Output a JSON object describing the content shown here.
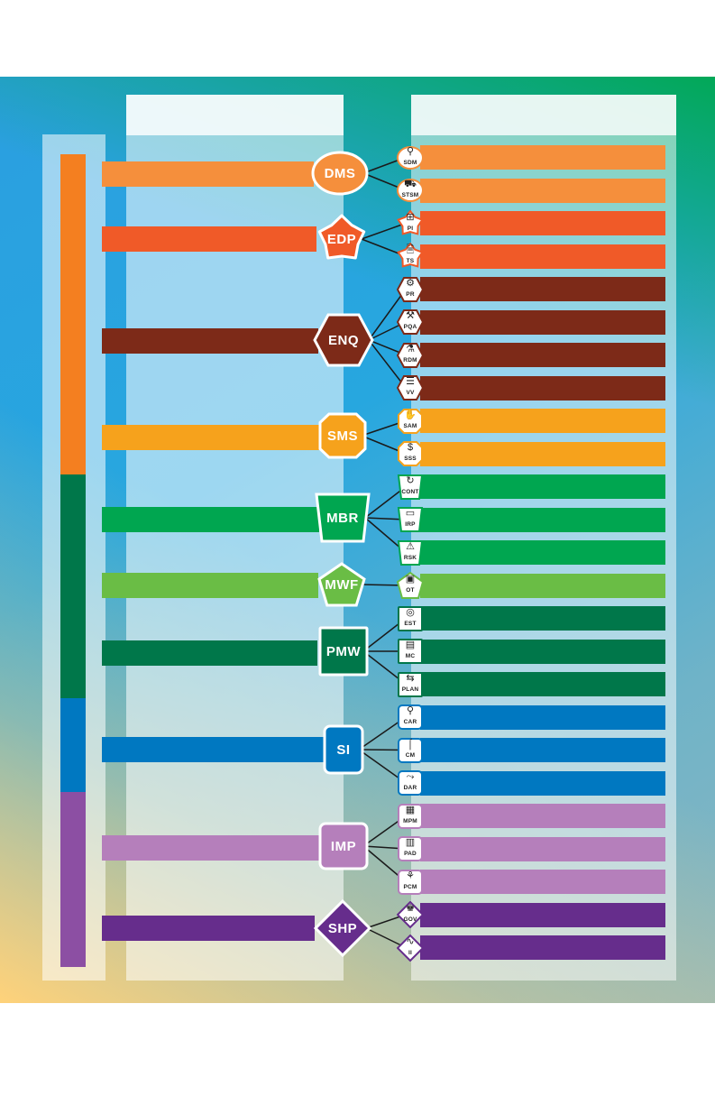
{
  "colors": {
    "dms": "#f58f3c",
    "edp": "#f05a28",
    "enq": "#7d2a18",
    "sms": "#f6a21c",
    "mbr": "#00a650",
    "mwf": "#6abd45",
    "pmw": "#00774a",
    "si": "#0078c1",
    "imp": "#b57fbb",
    "shp": "#662d8c",
    "sidebar_orange": "#f47f20",
    "sidebar_green": "#00774a",
    "sidebar_blue": "#0078c1",
    "sidebar_purple": "#8c4fa3"
  },
  "groups": [
    {
      "id": "dms",
      "label": "DMS",
      "shape": "ellipse",
      "color": "#f58f3c",
      "components": [
        {
          "code": "SDM",
          "icon": "people-search-icon",
          "glyph": "⚲"
        },
        {
          "code": "STSM",
          "icon": "truck-icon",
          "glyph": "⛟"
        }
      ]
    },
    {
      "id": "edp",
      "label": "EDP",
      "shape": "star-blob",
      "color": "#f05a28",
      "components": [
        {
          "code": "PI",
          "icon": "grid-globe-icon",
          "glyph": "⊞"
        },
        {
          "code": "TS",
          "icon": "document-check-icon",
          "glyph": "🗎"
        }
      ]
    },
    {
      "id": "enq",
      "label": "ENQ",
      "shape": "hexagon",
      "color": "#7d2a18",
      "components": [
        {
          "code": "PR",
          "icon": "gears-icon",
          "glyph": "⚙"
        },
        {
          "code": "PQA",
          "icon": "inspection-icon",
          "glyph": "⚒"
        },
        {
          "code": "RDM",
          "icon": "lab-icon",
          "glyph": "⚗"
        },
        {
          "code": "VV",
          "icon": "checklist-icon",
          "glyph": "☰"
        }
      ]
    },
    {
      "id": "sms",
      "label": "SMS",
      "shape": "octagon",
      "color": "#f6a21c",
      "components": [
        {
          "code": "SAM",
          "icon": "handshake-icon",
          "glyph": "✋"
        },
        {
          "code": "SSS",
          "icon": "money-people-icon",
          "glyph": "$"
        }
      ]
    },
    {
      "id": "mbr",
      "label": "MBR",
      "shape": "trapezoid",
      "color": "#00a650",
      "components": [
        {
          "code": "CONT",
          "icon": "refresh-icon",
          "glyph": "↻"
        },
        {
          "code": "IRP",
          "icon": "monitor-icon",
          "glyph": "▭"
        },
        {
          "code": "RSK",
          "icon": "warning-icon",
          "glyph": "⚠"
        }
      ]
    },
    {
      "id": "mwf",
      "label": "MWF",
      "shape": "pentagon",
      "color": "#6abd45",
      "components": [
        {
          "code": "OT",
          "icon": "worker-screen-icon",
          "glyph": "▣"
        }
      ]
    },
    {
      "id": "pmw",
      "label": "PMW",
      "shape": "square",
      "color": "#00774a",
      "components": [
        {
          "code": "EST",
          "icon": "target-icon",
          "glyph": "◎"
        },
        {
          "code": "MC",
          "icon": "clipboard-icon",
          "glyph": "▤"
        },
        {
          "code": "PLAN",
          "icon": "plan-icon",
          "glyph": "⇆"
        }
      ]
    },
    {
      "id": "si",
      "label": "SI",
      "shape": "rounded-rect",
      "color": "#0078c1",
      "components": [
        {
          "code": "CAR",
          "icon": "magnifier-icon",
          "glyph": "⚲"
        },
        {
          "code": "CM",
          "icon": "wrench-icon",
          "glyph": "⌠"
        },
        {
          "code": "DAR",
          "icon": "decision-icon",
          "glyph": "⤳"
        }
      ]
    },
    {
      "id": "imp",
      "label": "IMP",
      "shape": "rounded-rect",
      "color": "#b57fbb",
      "components": [
        {
          "code": "MPM",
          "icon": "report-icon",
          "glyph": "▦"
        },
        {
          "code": "PAD",
          "icon": "process-icon",
          "glyph": "▥"
        },
        {
          "code": "PCM",
          "icon": "flowchart-icon",
          "glyph": "⚘"
        }
      ]
    },
    {
      "id": "shp",
      "label": "SHP",
      "shape": "diamond",
      "color": "#662d8c",
      "components": [
        {
          "code": "GOV",
          "icon": "governance-icon",
          "glyph": "♚"
        },
        {
          "code": "II",
          "icon": "pulse-icon",
          "glyph": "∿"
        }
      ]
    }
  ]
}
